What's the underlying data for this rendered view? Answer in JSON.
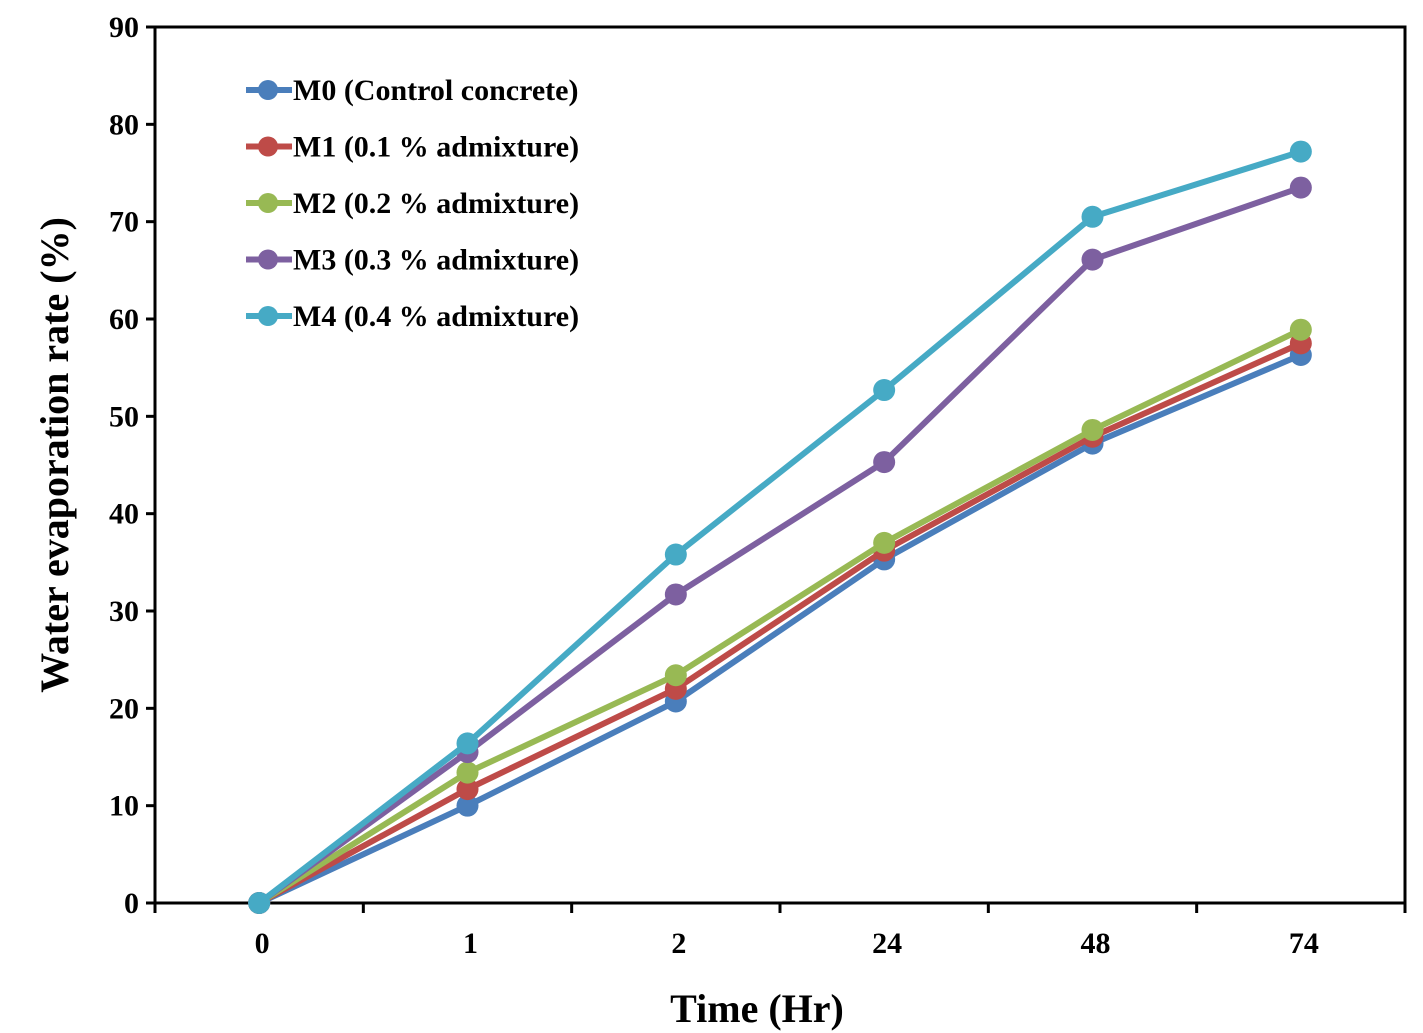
{
  "chart_data": {
    "type": "line",
    "title": "",
    "xlabel": "Time (Hr)",
    "ylabel": "Water evaporation rate (%)",
    "categories": [
      "0",
      "1",
      "2",
      "24",
      "48",
      "74"
    ],
    "ylim": [
      0,
      90
    ],
    "yticks": [
      0,
      10,
      20,
      30,
      40,
      50,
      60,
      70,
      80,
      90
    ],
    "grid": false,
    "legend_position": "top-left",
    "series": [
      {
        "name": "M0 (Control concrete)",
        "color": "#4a7ebb",
        "values": [
          0,
          10.0,
          20.7,
          35.3,
          47.2,
          56.3
        ]
      },
      {
        "name": "M1 (0.1 % admixture)",
        "color": "#be4b48",
        "values": [
          0,
          11.7,
          22.0,
          36.2,
          47.9,
          57.5
        ]
      },
      {
        "name": "M2 (0.2 % admixture)",
        "color": "#98b954",
        "values": [
          0,
          13.4,
          23.4,
          37.0,
          48.6,
          58.9
        ]
      },
      {
        "name": "M3 (0.3 % admixture)",
        "color": "#7d60a0",
        "values": [
          0,
          15.5,
          31.7,
          45.3,
          66.1,
          73.5
        ]
      },
      {
        "name": "M4 (0.4 % admixture)",
        "color": "#46aac5",
        "values": [
          0,
          16.4,
          35.8,
          52.7,
          70.5,
          77.2
        ]
      }
    ]
  }
}
